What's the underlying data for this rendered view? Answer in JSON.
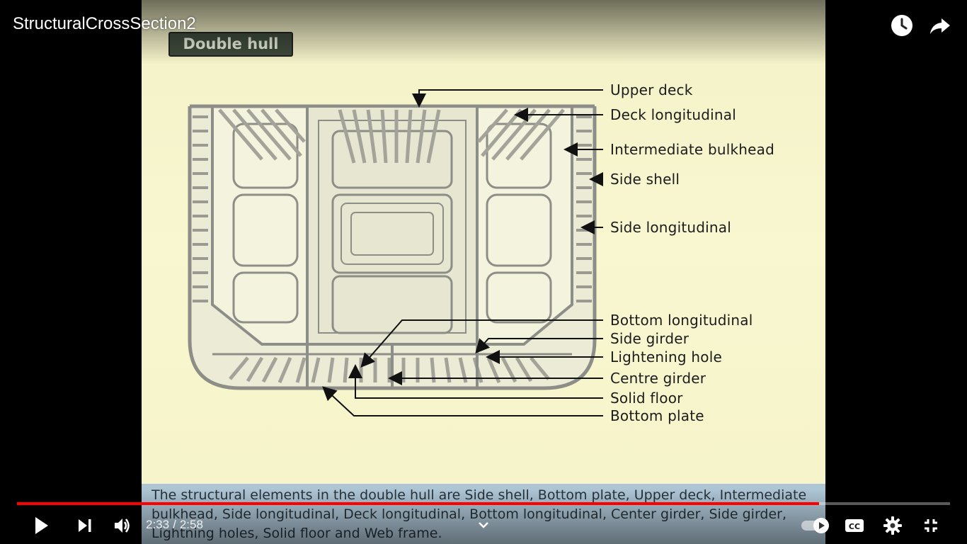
{
  "video": {
    "title": "StructuralCrossSection2",
    "slide_heading": "Double hull",
    "labels": [
      {
        "text": "Upper deck"
      },
      {
        "text": "Deck longitudinal"
      },
      {
        "text": "Intermediate bulkhead"
      },
      {
        "text": "Side shell"
      },
      {
        "text": "Side longitudinal"
      },
      {
        "text": "Bottom longitudinal"
      },
      {
        "text": "Side girder"
      },
      {
        "text": "Lightening hole"
      },
      {
        "text": "Centre girder"
      },
      {
        "text": "Solid floor"
      },
      {
        "text": "Bottom plate"
      }
    ],
    "caption": "The structural elements in the double hull are Side shell, Bottom plate, Upper deck, Intermediate bulkhead, Side longitudinal, Deck longitudinal, Bottom longitudinal, Center girder, Side girder, Lightning holes, Solid floor and Web frame."
  },
  "player": {
    "current_time": "2:33",
    "duration": "2:58",
    "progress_fraction": 0.86,
    "accent_color": "#ff0000",
    "icons": {
      "watch_later": "clock-icon",
      "share": "share-icon",
      "play": "play-icon",
      "next": "next-icon",
      "volume": "volume-icon",
      "chapters": "chevron-down-icon",
      "autoplay": "autoplay-toggle-icon",
      "captions": "cc-icon",
      "settings": "gear-icon",
      "fullscreen": "exit-fullscreen-icon"
    }
  }
}
